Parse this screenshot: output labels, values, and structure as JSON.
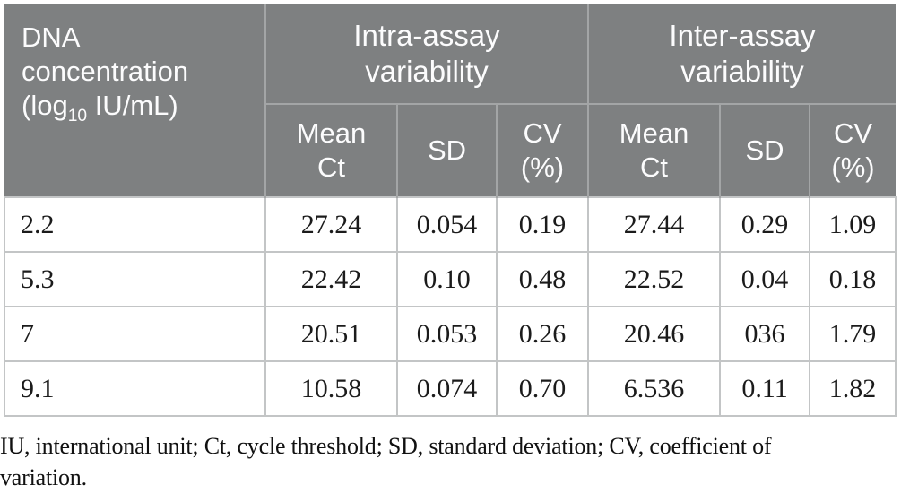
{
  "colors": {
    "header_bg": "#7e8081",
    "header_text": "#fcfcfd",
    "header_divider": "#a3a5a6",
    "grid_line": "#c3c5c6",
    "body_text": "#1b1b1b"
  },
  "table": {
    "corner_header": {
      "line1": "DNA",
      "line2": "concentration",
      "line3_prefix": "(log",
      "line3_subscript": "10",
      "line3_suffix": " IU/mL)"
    },
    "groups": [
      {
        "line1": "Intra-assay",
        "line2": "variability"
      },
      {
        "line1": "Inter-assay",
        "line2": "variability"
      }
    ],
    "subheaders": [
      {
        "line1": "Mean",
        "line2": "Ct"
      },
      {
        "line1": "SD",
        "line2": ""
      },
      {
        "line1": "CV",
        "line2": "(%)"
      },
      {
        "line1": "Mean",
        "line2": "Ct"
      },
      {
        "line1": "SD",
        "line2": ""
      },
      {
        "line1": "CV",
        "line2": "(%)"
      }
    ],
    "rows": [
      [
        "2.2",
        "27.24",
        "0.054",
        "0.19",
        "27.44",
        "0.29",
        "1.09"
      ],
      [
        "5.3",
        "22.42",
        "0.10",
        "0.48",
        "22.52",
        "0.04",
        "0.18"
      ],
      [
        "7",
        "20.51",
        "0.053",
        "0.26",
        "20.46",
        "036",
        "1.79"
      ],
      [
        "9.1",
        "10.58",
        "0.074",
        "0.70",
        "6.536",
        "0.11",
        "1.82"
      ]
    ],
    "footnote": "IU, international unit; Ct, cycle threshold; SD, standard deviation; CV, coefficient of variation."
  }
}
